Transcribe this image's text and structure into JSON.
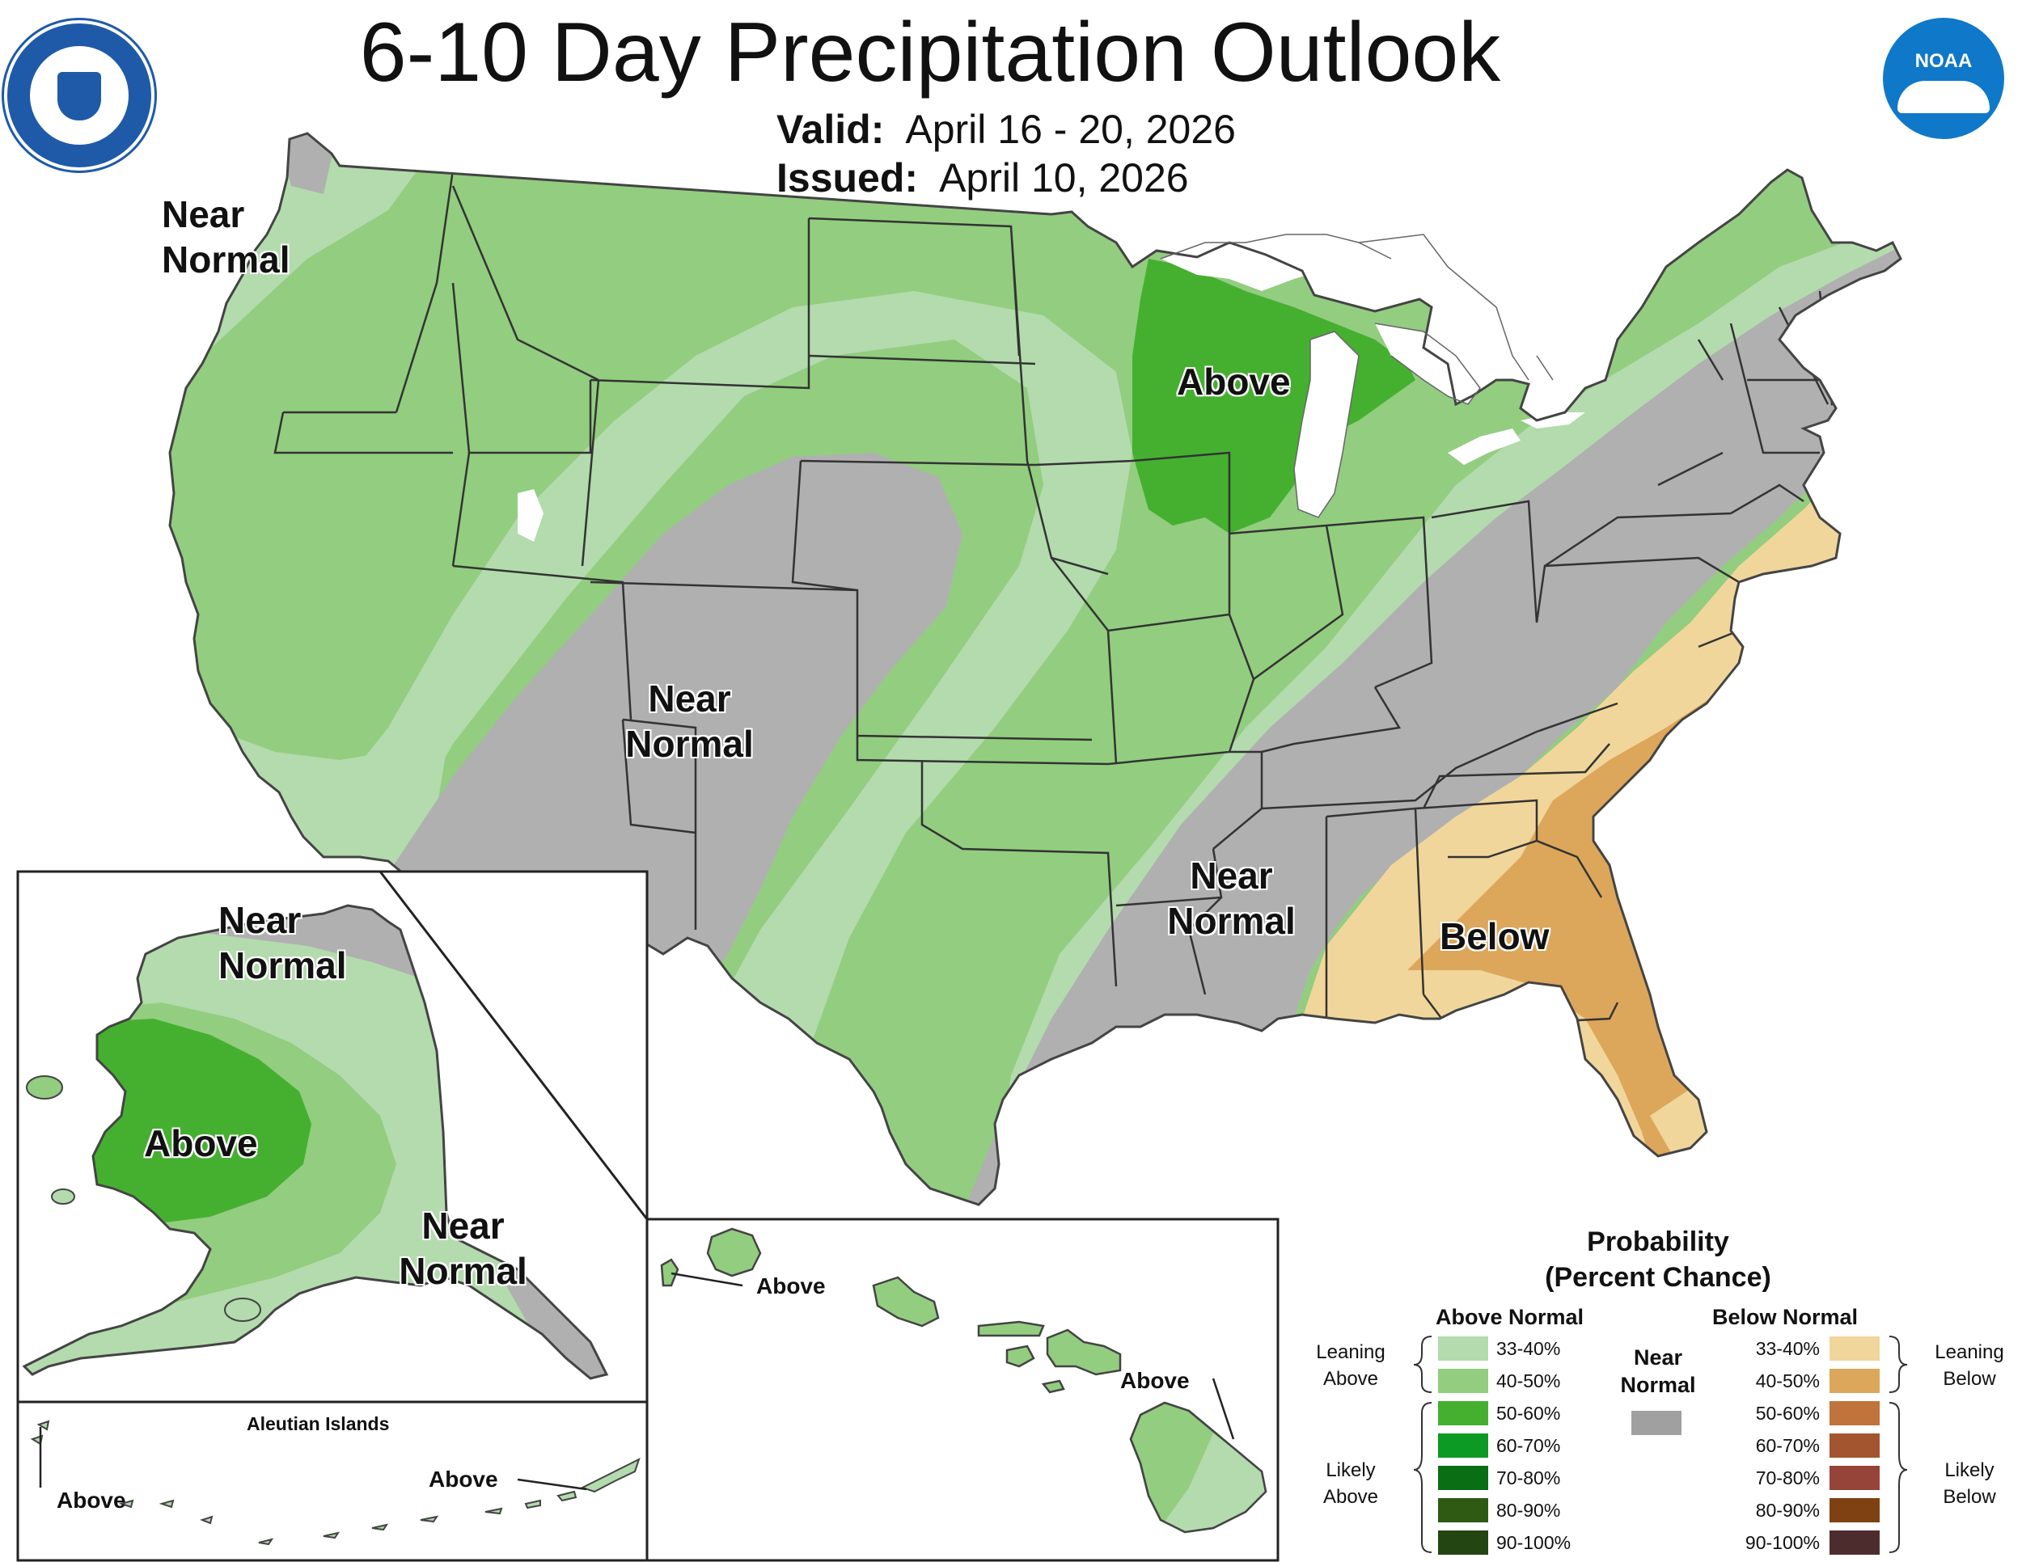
{
  "title": "6-10 Day Precipitation Outlook",
  "valid_label": "Valid:",
  "valid_dates": "April 16 - 20, 2026",
  "issued_label": "Issued:",
  "issued_date": "April 10, 2026",
  "logos": {
    "commerce_seal": "department-of-commerce-seal-icon",
    "noaa": "noaa-logo-icon",
    "noaa_text": "NOAA"
  },
  "colors": {
    "lean_above": "#b3dbad",
    "above_40": "#93cd80",
    "above_50": "#45b030",
    "near_normal": "#b0b0b1",
    "lean_below": "#f1d69b",
    "below_40": "#dca75a",
    "ocean": "#ffffff",
    "lakes": "#ffffff"
  },
  "conus_labels": {
    "nw_near_normal": "Near\nNormal",
    "above_upper_midwest": "Above",
    "central_near_normal": "Near\nNormal",
    "se_near_normal": "Near\nNormal",
    "below_southeast": "Below"
  },
  "alaska_labels": {
    "north_near_normal": "Near\nNormal",
    "above": "Above",
    "southeast_near_normal": "Near\nNormal"
  },
  "aleutian": {
    "title": "Aleutian Islands",
    "label_left": "Above",
    "label_right": "Above"
  },
  "hawaii_labels": {
    "kauai_above": "Above",
    "big_island_above": "Above"
  },
  "legend": {
    "title": "Probability\n(Percent Chance)",
    "above_header": "Above Normal",
    "below_header": "Below Normal",
    "near_header": "Near\nNormal",
    "leaning_above": "Leaning\nAbove",
    "likely_above": "Likely\nAbove",
    "leaning_below": "Leaning\nBelow",
    "likely_below": "Likely\nBelow",
    "above_items": [
      {
        "range": "33-40%",
        "color": "#b3dbad"
      },
      {
        "range": "40-50%",
        "color": "#93cd80"
      },
      {
        "range": "50-60%",
        "color": "#45b030"
      },
      {
        "range": "60-70%",
        "color": "#0c9a25"
      },
      {
        "range": "70-80%",
        "color": "#0a6e15"
      },
      {
        "range": "80-90%",
        "color": "#2e5a14"
      },
      {
        "range": "90-100%",
        "color": "#234512"
      }
    ],
    "below_items": [
      {
        "range": "33-40%",
        "color": "#f1d69b"
      },
      {
        "range": "40-50%",
        "color": "#dca75a"
      },
      {
        "range": "50-60%",
        "color": "#c0733a"
      },
      {
        "range": "60-70%",
        "color": "#a2552e"
      },
      {
        "range": "70-80%",
        "color": "#964439"
      },
      {
        "range": "80-90%",
        "color": "#7f4111"
      },
      {
        "range": "90-100%",
        "color": "#4d2c2e"
      }
    ],
    "near_color": "#a0a0a0"
  }
}
